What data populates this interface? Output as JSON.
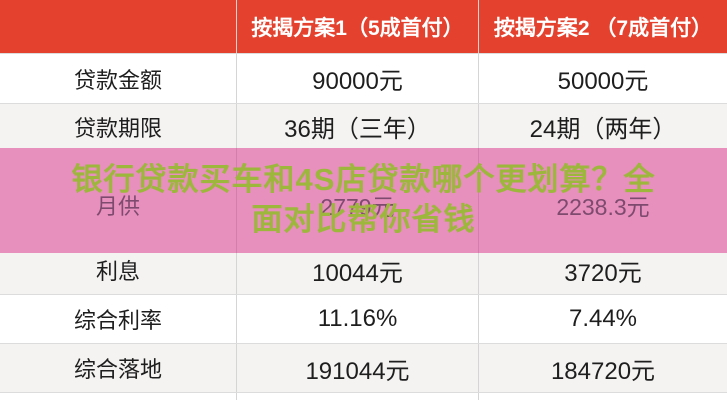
{
  "table": {
    "columns": [
      "",
      "按揭方案1（5成首付）",
      "按揭方案2 （7成首付）"
    ],
    "rows": [
      {
        "label": "贷款金额",
        "plan1": "90000元",
        "plan2": "50000元"
      },
      {
        "label": "贷款期限",
        "plan1": "36期（三年）",
        "plan2": "24期（两年）"
      },
      {
        "label": "月供",
        "plan1": "2779元",
        "plan2": "2238.3元"
      },
      {
        "label": "利息",
        "plan1": "10044元",
        "plan2": "3720元"
      },
      {
        "label": "综合利率",
        "plan1": "11.16%",
        "plan2": "7.44%"
      },
      {
        "label": "综合落地",
        "plan1": "191044元",
        "plan2": "184720元"
      }
    ]
  },
  "overlay": {
    "title_line1": "银行贷款买车和4S店贷款哪个更划算？全",
    "title_line2": "面对比帮你省钱",
    "text_color": "#9db63c",
    "background_color": "#e78fbd"
  },
  "colors": {
    "header_bg": "#e4422e",
    "header_text": "#ffffff",
    "row_alt_bg": "#f4f3f1",
    "body_text": "#1e1e1e",
    "ghost_text": "#7e4b6f",
    "divider": "#d5d5d5"
  },
  "chart_data": {
    "type": "table",
    "title": "银行贷款买车和4S店贷款哪个更划算？全面对比帮你省钱",
    "columns": [
      "",
      "按揭方案1（5成首付）",
      "按揭方案2 （7成首付）"
    ],
    "rows": [
      [
        "贷款金额",
        "90000元",
        "50000元"
      ],
      [
        "贷款期限",
        "36期（三年）",
        "24期（两年）"
      ],
      [
        "月供",
        "2779元",
        "2238.3元"
      ],
      [
        "利息",
        "10044元",
        "3720元"
      ],
      [
        "综合利率",
        "11.16%",
        "7.44%"
      ],
      [
        "综合落地",
        "191044元",
        "184720元"
      ]
    ]
  }
}
